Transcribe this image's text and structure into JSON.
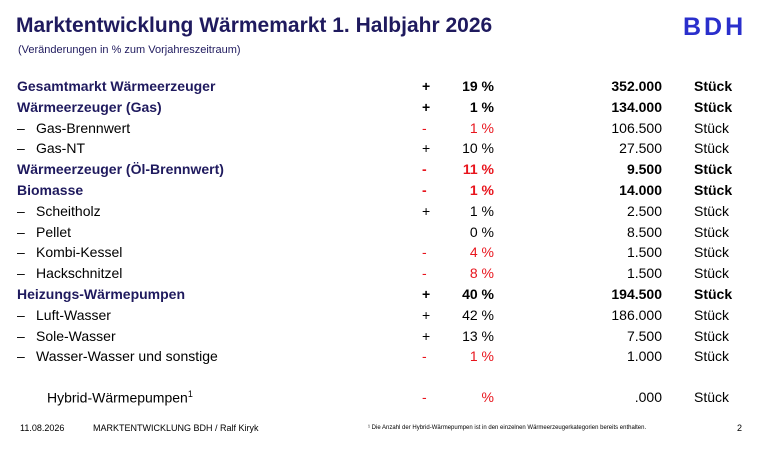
{
  "header": {
    "title": "Marktentwicklung Wärmemarkt 1. Halbjahr 2026",
    "subtitle": "(Veränderungen in % zum Vorjahreszeitraum)",
    "logo_text": "BDH"
  },
  "rows": [
    {
      "dash": "",
      "label": "Gesamtmarkt Wärmeerzeuger",
      "sign": "+",
      "pct": "19 %",
      "num": "352.000",
      "unit": "Stück"
    },
    {
      "dash": "",
      "label": "Wärmeerzeuger (Gas)",
      "sign": "+",
      "pct": "1 %",
      "num": "134.000",
      "unit": "Stück"
    },
    {
      "dash": "–",
      "label": "Gas-Brennwert",
      "sign": "-",
      "pct": "1 %",
      "num": "106.500",
      "unit": "Stück"
    },
    {
      "dash": "–",
      "label": "Gas-NT",
      "sign": "+",
      "pct": "10 %",
      "num": "27.500",
      "unit": "Stück"
    },
    {
      "dash": "",
      "label": "Wärmeerzeuger (Öl-Brennwert)",
      "sign": "-",
      "pct": "11 %",
      "num": "9.500",
      "unit": "Stück"
    },
    {
      "dash": "",
      "label": "Biomasse",
      "sign": "-",
      "pct": "1 %",
      "num": "14.000",
      "unit": "Stück"
    },
    {
      "dash": "–",
      "label": "Scheitholz",
      "sign": "+",
      "pct": "1 %",
      "num": "2.500",
      "unit": "Stück"
    },
    {
      "dash": "–",
      "label": "Pellet",
      "sign": "",
      "pct": "0 %",
      "num": "8.500",
      "unit": "Stück"
    },
    {
      "dash": "–",
      "label": "Kombi-Kessel",
      "sign": "-",
      "pct": "4 %",
      "num": "1.500",
      "unit": "Stück"
    },
    {
      "dash": "–",
      "label": "Hackschnitzel",
      "sign": "-",
      "pct": "8 %",
      "num": "1.500",
      "unit": "Stück"
    },
    {
      "dash": "",
      "label": "Heizungs-Wärmepumpen",
      "sign": "+",
      "pct": "40 %",
      "num": "194.500",
      "unit": "Stück"
    },
    {
      "dash": "–",
      "label": "Luft-Wasser",
      "sign": "+",
      "pct": "42 %",
      "num": "186.000",
      "unit": "Stück"
    },
    {
      "dash": "–",
      "label": "Sole-Wasser",
      "sign": "+",
      "pct": "13 %",
      "num": "7.500",
      "unit": "Stück"
    },
    {
      "dash": "–",
      "label": "Wasser-Wasser und sonstige",
      "sign": "-",
      "pct": "1 %",
      "num": "1.000",
      "unit": "Stück"
    }
  ],
  "hybrid": {
    "label": "Hybrid-Wärmepumpen",
    "footnote_mark": "1",
    "sign": "-",
    "pct": "%",
    "num": ".000",
    "unit": "Stück"
  },
  "footer": {
    "date": "11.08.2026",
    "center": "MARKTENTWICKLUNG BDH / Ralf Kiryk",
    "note": "¹ Die Anzahl der Hybrid-Wärmepumpen ist in den einzelnen Wärmeerzeugerkategorien bereits enthalten.",
    "page": "2"
  },
  "colors": {
    "title": "#1f1a5e",
    "logo": "#2a2fcc",
    "negative": "#e8141c"
  }
}
